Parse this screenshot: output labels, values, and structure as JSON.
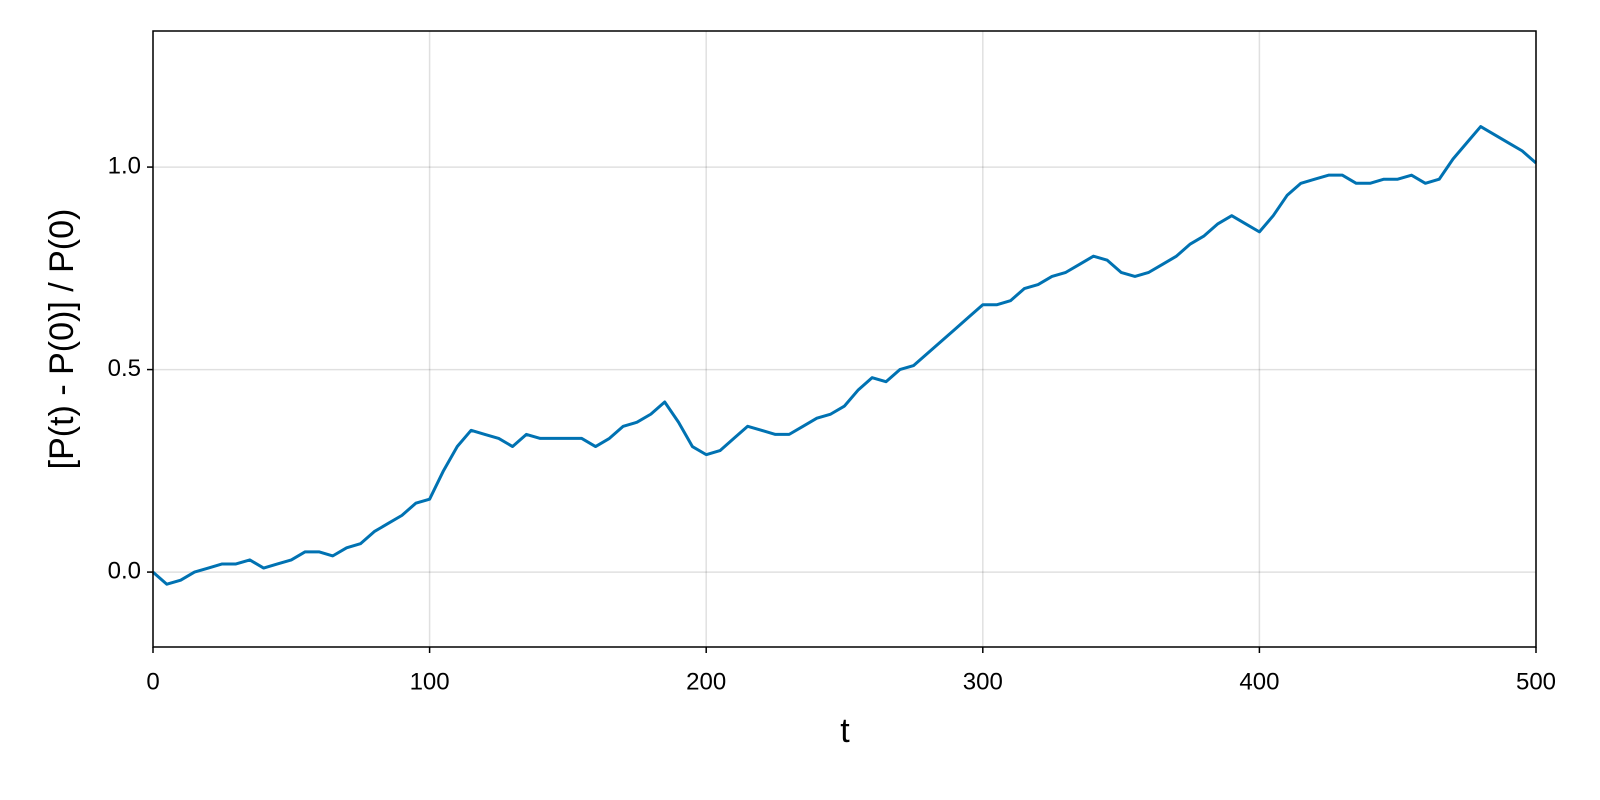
{
  "chart_data": {
    "type": "line",
    "x_label": "t",
    "y_label": "[P(t) - P(0)] / P(0)",
    "x": [
      0,
      5,
      10,
      15,
      20,
      25,
      30,
      35,
      40,
      45,
      50,
      55,
      60,
      65,
      70,
      75,
      80,
      85,
      90,
      95,
      100,
      105,
      110,
      115,
      120,
      125,
      130,
      135,
      140,
      145,
      150,
      155,
      160,
      165,
      170,
      175,
      180,
      185,
      190,
      195,
      200,
      205,
      210,
      215,
      220,
      225,
      230,
      235,
      240,
      245,
      250,
      255,
      260,
      265,
      270,
      275,
      280,
      285,
      290,
      295,
      300,
      305,
      310,
      315,
      320,
      325,
      330,
      335,
      340,
      345,
      350,
      355,
      360,
      365,
      370,
      375,
      380,
      385,
      390,
      395,
      400,
      405,
      410,
      415,
      420,
      425,
      430,
      435,
      440,
      445,
      450,
      455,
      460,
      465,
      470,
      475,
      480,
      485,
      490,
      495,
      500
    ],
    "values": [
      0.0,
      -0.03,
      -0.02,
      0.0,
      0.01,
      0.02,
      0.02,
      0.03,
      0.01,
      0.02,
      0.03,
      0.05,
      0.05,
      0.04,
      0.06,
      0.07,
      0.1,
      0.12,
      0.14,
      0.17,
      0.18,
      0.25,
      0.31,
      0.35,
      0.34,
      0.33,
      0.31,
      0.34,
      0.33,
      0.33,
      0.33,
      0.33,
      0.31,
      0.33,
      0.36,
      0.37,
      0.39,
      0.42,
      0.37,
      0.31,
      0.29,
      0.3,
      0.33,
      0.36,
      0.35,
      0.34,
      0.34,
      0.36,
      0.38,
      0.39,
      0.41,
      0.45,
      0.48,
      0.47,
      0.5,
      0.51,
      0.54,
      0.57,
      0.6,
      0.63,
      0.66,
      0.66,
      0.67,
      0.7,
      0.71,
      0.73,
      0.74,
      0.76,
      0.78,
      0.77,
      0.74,
      0.73,
      0.74,
      0.76,
      0.78,
      0.81,
      0.83,
      0.86,
      0.88,
      0.86,
      0.84,
      0.88,
      0.93,
      0.96,
      0.97,
      0.98,
      0.98,
      0.96,
      0.96,
      0.97,
      0.97,
      0.98,
      0.96,
      0.97,
      1.02,
      1.06,
      1.1,
      1.08,
      1.06,
      1.04,
      1.01
    ],
    "color": "#0072b2",
    "xlim": [
      0,
      500
    ],
    "xticks": [
      0,
      100,
      200,
      300,
      400,
      500
    ],
    "ylim": [
      -0.185,
      1.336
    ],
    "yticks": [
      {
        "value": 0,
        "label": "0.0"
      },
      0.5,
      {
        "value": 1,
        "label": "1.0"
      }
    ],
    "grid": true
  }
}
